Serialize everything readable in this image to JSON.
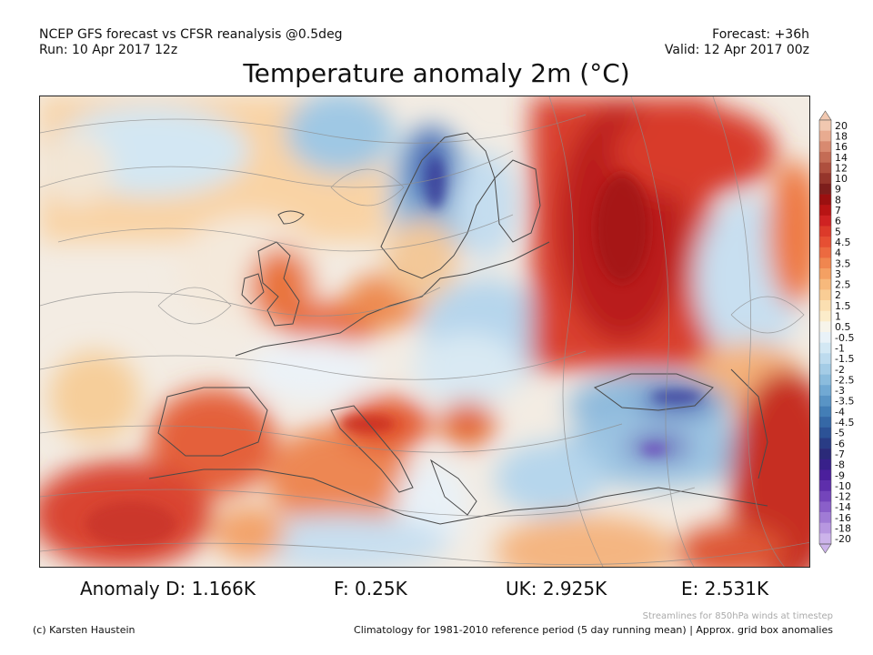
{
  "header": {
    "left_line1": "NCEP GFS forecast vs CFSR reanalysis @0.5deg",
    "left_line2": "Run: 10 Apr 2017 12z",
    "right_line1": "Forecast: +36h",
    "right_line2": "Valid: 12 Apr 2017 00z"
  },
  "title": "Temperature anomaly 2m (°C)",
  "colorbar": {
    "labels": [
      "20",
      "18",
      "16",
      "14",
      "12",
      "10",
      "9",
      "8",
      "7",
      "6",
      "5",
      "4.5",
      "4",
      "3.5",
      "3",
      "2.5",
      "2",
      "1.5",
      "1",
      "0.5",
      "-0.5",
      "-1",
      "-1.5",
      "-2",
      "-2.5",
      "-3",
      "-3.5",
      "-4",
      "-4.5",
      "-5",
      "-6",
      "-7",
      "-8",
      "-9",
      "-10",
      "-12",
      "-14",
      "-16",
      "-18",
      "-20"
    ],
    "colors": [
      "#f1c8b0",
      "#e8ab90",
      "#d88a70",
      "#c46c55",
      "#ae4f3e",
      "#95352b",
      "#7d1e1c",
      "#9b1010",
      "#b81414",
      "#cf2222",
      "#dc3a2a",
      "#e64f33",
      "#ec6a40",
      "#f0864f",
      "#f4a063",
      "#f7b97c",
      "#f9cd95",
      "#fbdfb1",
      "#fcecca",
      "#f7f4ea",
      "#e9f2f8",
      "#d3e8f4",
      "#bddbee",
      "#a4cce6",
      "#8bbcdd",
      "#71a9d3",
      "#5994c5",
      "#437eb6",
      "#3568a6",
      "#2c5296",
      "#293c85",
      "#2b2a79",
      "#38208a",
      "#4b1f9c",
      "#5e2eab",
      "#7445bb",
      "#8a5fc9",
      "#a07bd5",
      "#b797e0",
      "#ccb3ea"
    ]
  },
  "anomalies": {
    "d": "Anomaly D: 1.166K",
    "f": "F: 0.25K",
    "uk": "UK: 2.925K",
    "e": "E: 2.531K"
  },
  "footer": {
    "stream_note": "Streamlines for 850hPa winds at timestep",
    "copyright": "(c) Karsten Haustein",
    "clim_note": "Climatology for 1981-2010 reference period (5 day running mean) | Approx. grid box anomalies"
  }
}
